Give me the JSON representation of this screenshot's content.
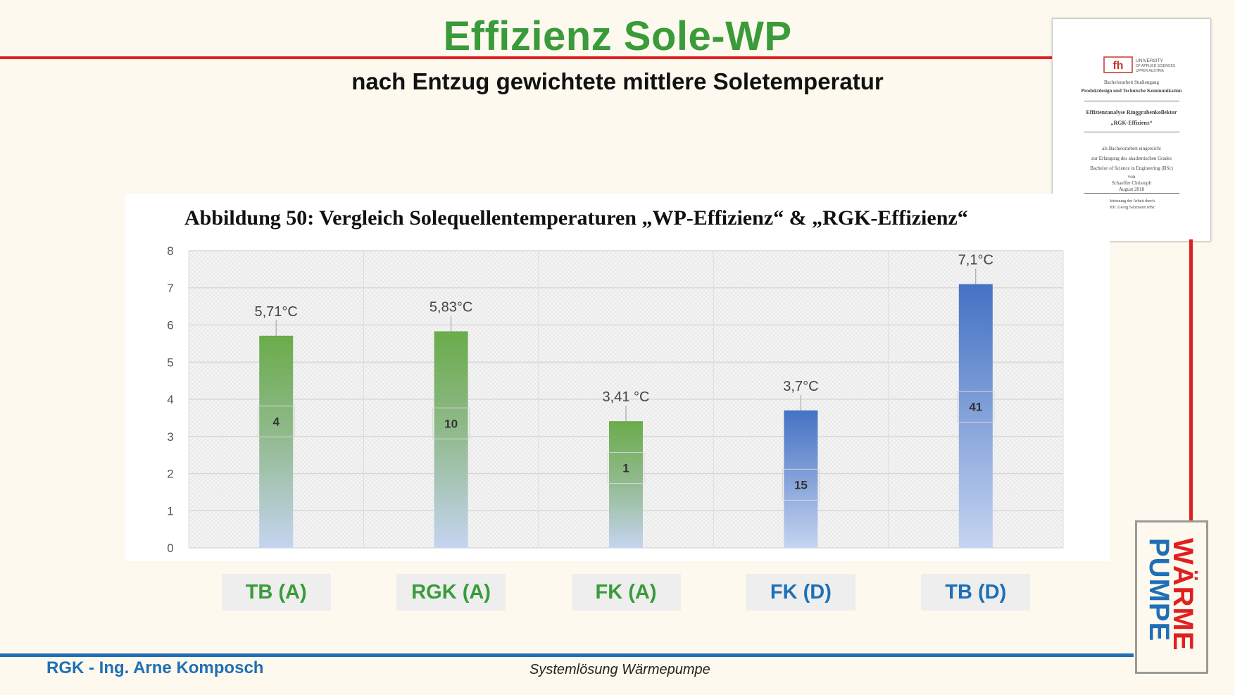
{
  "slide": {
    "title": "Effizienz Sole-WP",
    "subtitle": "nach Entzug gewichtete mittlere Soletemperatur",
    "footer_left": "RGK - Ing. Arne Komposch",
    "footer_center": "Systemlösung Wärmepumpe",
    "logo_text_top": "WÄRME",
    "logo_text_bottom": "PUMPE"
  },
  "thumbnail": {
    "lines": [
      "Bachelorarbeit Studiengang",
      "Produktdesign und Technische Kommunikation",
      "Effizienzanalyse Ringgrabenkollektor",
      "„RGK-Effizienz“",
      "als Bachelorarbeit eingereicht",
      "zur Erlangung des akademischen Grades",
      "Bachelor of Science in Engineering (BSc)",
      "von",
      "Schaeffer Christoph",
      "August 2018",
      "Betreuung der Arbeit durch",
      "DDI. Georg Salzmann MSc"
    ],
    "logo_text": "UNIVERSITY OF APPLIED SCIENCES UPPER AUSTRIA"
  },
  "colors": {
    "title_green": "#3a9b3a",
    "red_line": "#e02020",
    "blue_line": "#1f6fb5",
    "bar_green": "#6aac4a",
    "bar_blue": "#4472c4",
    "bar_light": "#c5d4f0",
    "category_green": "#3a9b3a",
    "category_blue": "#1f6fb5"
  },
  "chart_data": {
    "type": "bar",
    "title": "Abbildung 50: Vergleich Solequellentemperaturen „WP-Effizienz“ & „RGK-Effizienz“",
    "categories": [
      "TB (A)",
      "RGK (A)",
      "FK (A)",
      "FK (D)",
      "TB (D)"
    ],
    "values": [
      5.71,
      5.83,
      3.41,
      3.7,
      7.1
    ],
    "value_labels": [
      "5,71°C",
      "5,83°C",
      "3,41 °C",
      "3,7°C",
      "7,1°C"
    ],
    "count_labels": [
      "4",
      "10",
      "1",
      "15",
      "41"
    ],
    "count_positions": [
      3.4,
      3.35,
      2.15,
      1.7,
      3.8
    ],
    "bar_colors": [
      "green",
      "green",
      "green",
      "blue",
      "blue"
    ],
    "ylim": [
      0,
      8
    ],
    "yticks": [
      "0",
      "1",
      "2",
      "3",
      "4",
      "5",
      "6",
      "7",
      "8"
    ],
    "grid": true
  }
}
